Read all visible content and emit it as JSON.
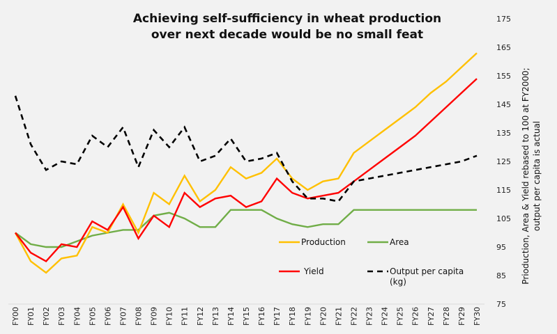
{
  "chart_data": {
    "type": "line",
    "title": [
      "Achieving self-sufficiency in wheat production",
      "over next decade would be no small feat"
    ],
    "xlabel": "",
    "ylabel": [
      "Prioduction, Area & Yield rebased to 100 at FY2000;",
      "output per capita is actual"
    ],
    "ylim": [
      75,
      175
    ],
    "yticks": [
      75,
      85,
      95,
      105,
      115,
      125,
      135,
      145,
      155,
      165,
      175
    ],
    "y_axis_side": "right",
    "grid": false,
    "legend_position": "bottom-center",
    "categories": [
      "FY00",
      "FY01",
      "FY02",
      "FY03",
      "FY04",
      "FY05",
      "FY06",
      "FY07",
      "FY08",
      "FY09",
      "FY10",
      "FY11",
      "FY12",
      "FY13",
      "FY14",
      "FY15",
      "FY16",
      "FY17",
      "FY18",
      "FY19",
      "FY20",
      "FY21",
      "FY22",
      "FY23",
      "FY24",
      "FY25",
      "FY26",
      "FY27",
      "FY28",
      "FY29",
      "FY30"
    ],
    "series": [
      {
        "name": "Production",
        "color": "#ffc000",
        "style": "solid",
        "values": [
          100,
          90,
          86,
          91,
          92,
          102,
          100,
          110,
          100,
          114,
          110,
          120,
          111,
          115,
          123,
          119,
          121,
          126,
          119,
          115,
          118,
          119,
          128,
          132,
          136,
          140,
          144,
          149,
          153,
          158,
          163
        ]
      },
      {
        "name": "Area",
        "color": "#70ad47",
        "style": "solid",
        "values": [
          100,
          96,
          95,
          95,
          97,
          99,
          100,
          101,
          101,
          106,
          107,
          105,
          102,
          102,
          108,
          108,
          108,
          105,
          103,
          102,
          103,
          103,
          108,
          108,
          108,
          108,
          108,
          108,
          108,
          108,
          108
        ]
      },
      {
        "name": "Yield",
        "color": "#ff0000",
        "style": "solid",
        "values": [
          100,
          93,
          90,
          96,
          95,
          104,
          101,
          109,
          98,
          106,
          102,
          114,
          109,
          112,
          113,
          109,
          111,
          119,
          114,
          112,
          113,
          114,
          118,
          122,
          126,
          130,
          134,
          139,
          144,
          149,
          154
        ]
      },
      {
        "name": "Output per capita (kg)",
        "color": "#000000",
        "style": "dashed",
        "values": [
          148,
          131,
          122,
          125,
          124,
          134,
          130,
          137,
          123,
          136,
          130,
          137,
          125,
          127,
          133,
          125,
          126,
          128,
          118,
          112,
          112,
          111,
          118,
          119,
          120,
          121,
          122,
          123,
          124,
          125,
          127
        ]
      }
    ]
  }
}
